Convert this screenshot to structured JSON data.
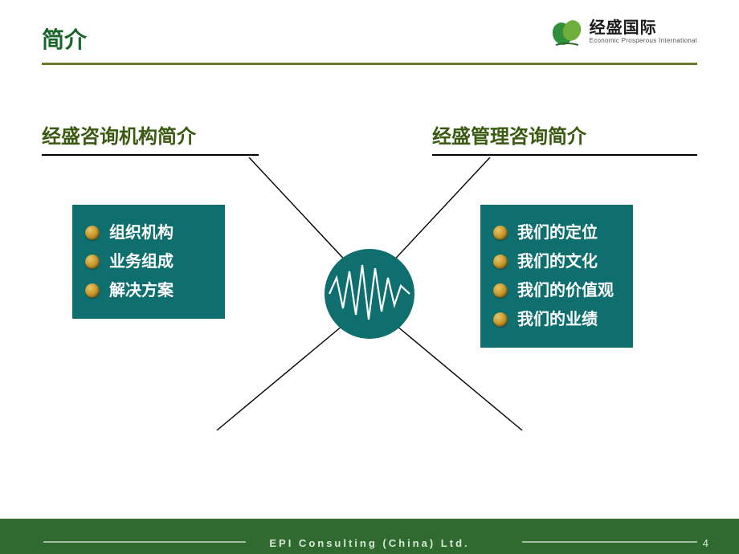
{
  "colors": {
    "brand_green": "#1a662a",
    "accent_teal": "#0f6e6e",
    "heading_olive": "#3a5a12",
    "rule_olive": "#6b7a2a",
    "footer_bg": "#2f6a2f",
    "footer_text": "#d9e8d9",
    "white": "#ffffff"
  },
  "slide": {
    "title": "简介",
    "page_number": "4"
  },
  "logo": {
    "name_cn": "经盛国际",
    "name_en": "Economic Prosperous International"
  },
  "left_section": {
    "heading": "经盛咨询机构简介",
    "items": [
      "组织机构",
      "业务组成",
      "解决方案"
    ]
  },
  "right_section": {
    "heading": "经盛管理咨询简介",
    "items": [
      "我们的定位",
      "我们的文化",
      "我们的价值观",
      "我们的业绩"
    ]
  },
  "center_node": {
    "radius": 56,
    "fill": "#0f6e6e",
    "wave_color": "#ffffff"
  },
  "connectors": {
    "stroke": "#000000",
    "stroke_width": 1.4
  },
  "footer": {
    "text": "EPI Consulting (China) Ltd."
  }
}
